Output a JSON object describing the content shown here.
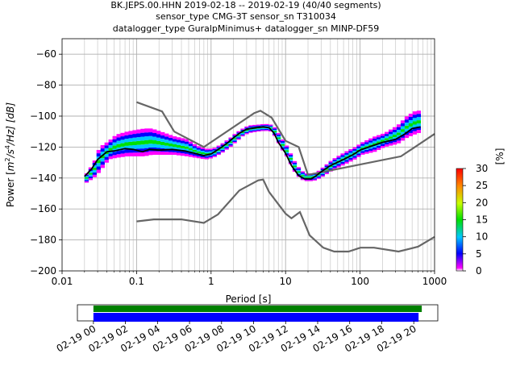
{
  "chart_data": [
    {
      "type": "heatmap",
      "subtype": "ppsd",
      "title_lines": [
        "BK.JEPS.00.HHN   2019-02-18 -- 2019-02-19  (40/40 segments)",
        "sensor_type CMG-3T sensor_sn T310034",
        "datalogger_type GuralpMinimus+ datalogger_sn MINP-DF59"
      ],
      "xlabel": "Period [s]",
      "ylabel": "Power [m²/s⁴/Hz] [dB]",
      "ylabel_parts": {
        "main": "Power [",
        "m": "m",
        "exp2": "2",
        "s": "/s",
        "exp4": "4",
        "hz": "/Hz] [dB]"
      },
      "xscale": "log",
      "xlim": [
        0.01,
        1000
      ],
      "ylim": [
        -200,
        -50
      ],
      "x_ticks": [
        0.01,
        0.1,
        1,
        10,
        100,
        1000
      ],
      "x_tick_labels": [
        "0.01",
        "0.1",
        "1",
        "10",
        "100",
        "1000"
      ],
      "y_ticks": [
        -60,
        -80,
        -100,
        -120,
        -140,
        -160,
        -180,
        -200
      ],
      "y_tick_labels": [
        "−60",
        "−80",
        "−100",
        "−120",
        "−140",
        "−160",
        "−180",
        "−200"
      ],
      "grid": true,
      "colorbar": {
        "label": "[%]",
        "range": [
          0,
          30
        ],
        "ticks": [
          0,
          5,
          10,
          15,
          20,
          25,
          30
        ],
        "tick_labels": [
          "0",
          "5",
          "10",
          "15",
          "20",
          "25",
          "30"
        ],
        "colormap": "pqlx"
      },
      "noise_models": [
        {
          "name": "NHNM",
          "color": "#666666",
          "points": [
            [
              0.1,
              -91
            ],
            [
              0.22,
              -97
            ],
            [
              0.32,
              -110
            ],
            [
              0.8,
              -120
            ],
            [
              3.8,
              -98
            ],
            [
              4.6,
              -96.5
            ],
            [
              6.5,
              -101
            ],
            [
              10,
              -116
            ],
            [
              15,
              -120
            ],
            [
              20,
              -138
            ],
            [
              354,
              -126
            ],
            [
              1000,
              -111.5
            ]
          ]
        },
        {
          "name": "NLNM",
          "color": "#666666",
          "points": [
            [
              0.1,
              -168
            ],
            [
              0.17,
              -166.7
            ],
            [
              0.4,
              -166.7
            ],
            [
              0.8,
              -169
            ],
            [
              1.24,
              -163.5
            ],
            [
              2.4,
              -148
            ],
            [
              4.3,
              -141.5
            ],
            [
              5,
              -141
            ],
            [
              6,
              -149
            ],
            [
              10,
              -163
            ],
            [
              12,
              -166
            ],
            [
              15.6,
              -162
            ],
            [
              21,
              -177
            ],
            [
              32,
              -185
            ],
            [
              45,
              -187.5
            ],
            [
              70,
              -187.5
            ],
            [
              101,
              -185
            ],
            [
              154,
              -185
            ],
            [
              328,
              -187.5
            ],
            [
              600,
              -184.4
            ],
            [
              1000,
              -178
            ]
          ]
        }
      ],
      "mean_curve": {
        "color": "#000000",
        "points": [
          [
            0.02,
            -139
          ],
          [
            0.025,
            -134
          ],
          [
            0.03,
            -128
          ],
          [
            0.04,
            -123
          ],
          [
            0.05,
            -122.5
          ],
          [
            0.07,
            -121
          ],
          [
            0.09,
            -121.5
          ],
          [
            0.12,
            -123
          ],
          [
            0.15,
            -121.5
          ],
          [
            0.2,
            -122
          ],
          [
            0.3,
            -121.5
          ],
          [
            0.45,
            -122.5
          ],
          [
            0.6,
            -124
          ],
          [
            0.8,
            -125.5
          ],
          [
            1,
            -124.5
          ],
          [
            1.3,
            -121
          ],
          [
            1.7,
            -117
          ],
          [
            2,
            -114
          ],
          [
            2.5,
            -110.5
          ],
          [
            3,
            -108.5
          ],
          [
            4,
            -107.5
          ],
          [
            5,
            -107
          ],
          [
            6,
            -107.5
          ],
          [
            7,
            -111
          ],
          [
            8,
            -117
          ],
          [
            10,
            -124
          ],
          [
            12,
            -132
          ],
          [
            15,
            -138.5
          ],
          [
            18,
            -140.5
          ],
          [
            22,
            -140.5
          ],
          [
            25,
            -139
          ],
          [
            30,
            -136
          ],
          [
            40,
            -132
          ],
          [
            60,
            -128
          ],
          [
            80,
            -125
          ],
          [
            100,
            -122
          ],
          [
            150,
            -119
          ],
          [
            200,
            -117
          ],
          [
            300,
            -115
          ],
          [
            400,
            -111.5
          ],
          [
            500,
            -108
          ],
          [
            650,
            -107
          ]
        ]
      },
      "ppsd_spread": [
        {
          "x": 0.02,
          "lo": -143,
          "hi": -137
        },
        {
          "x": 0.025,
          "lo": -140,
          "hi": -130
        },
        {
          "x": 0.03,
          "lo": -136,
          "hi": -120
        },
        {
          "x": 0.04,
          "lo": -128,
          "hi": -116
        },
        {
          "x": 0.05,
          "lo": -127,
          "hi": -112
        },
        {
          "x": 0.07,
          "lo": -126,
          "hi": -110
        },
        {
          "x": 0.09,
          "lo": -126,
          "hi": -109
        },
        {
          "x": 0.12,
          "lo": -126,
          "hi": -108
        },
        {
          "x": 0.15,
          "lo": -125,
          "hi": -108
        },
        {
          "x": 0.2,
          "lo": -125,
          "hi": -110
        },
        {
          "x": 0.3,
          "lo": -125,
          "hi": -113
        },
        {
          "x": 0.45,
          "lo": -126,
          "hi": -115
        },
        {
          "x": 0.6,
          "lo": -127,
          "hi": -119
        },
        {
          "x": 0.8,
          "lo": -128,
          "hi": -121
        },
        {
          "x": 1,
          "lo": -127,
          "hi": -121
        },
        {
          "x": 1.3,
          "lo": -124,
          "hi": -118
        },
        {
          "x": 1.7,
          "lo": -120,
          "hi": -114
        },
        {
          "x": 2,
          "lo": -117,
          "hi": -111
        },
        {
          "x": 2.5,
          "lo": -113,
          "hi": -108
        },
        {
          "x": 3,
          "lo": -111,
          "hi": -106
        },
        {
          "x": 4,
          "lo": -110,
          "hi": -105.5
        },
        {
          "x": 5,
          "lo": -109.5,
          "hi": -105
        },
        {
          "x": 6,
          "lo": -110,
          "hi": -105.5
        },
        {
          "x": 7,
          "lo": -114,
          "hi": -108
        },
        {
          "x": 8,
          "lo": -120,
          "hi": -113
        },
        {
          "x": 10,
          "lo": -127,
          "hi": -120
        },
        {
          "x": 12,
          "lo": -135,
          "hi": -128
        },
        {
          "x": 15,
          "lo": -141,
          "hi": -135
        },
        {
          "x": 18,
          "lo": -142,
          "hi": -137
        },
        {
          "x": 22,
          "lo": -142,
          "hi": -137
        },
        {
          "x": 25,
          "lo": -141,
          "hi": -136
        },
        {
          "x": 30,
          "lo": -139,
          "hi": -133
        },
        {
          "x": 40,
          "lo": -135,
          "hi": -128
        },
        {
          "x": 60,
          "lo": -131,
          "hi": -123
        },
        {
          "x": 80,
          "lo": -128,
          "hi": -120
        },
        {
          "x": 100,
          "lo": -125,
          "hi": -117
        },
        {
          "x": 150,
          "lo": -123,
          "hi": -113
        },
        {
          "x": 200,
          "lo": -120,
          "hi": -111
        },
        {
          "x": 300,
          "lo": -118,
          "hi": -106
        },
        {
          "x": 400,
          "lo": -114,
          "hi": -100
        },
        {
          "x": 500,
          "lo": -112,
          "hi": -97
        },
        {
          "x": 650,
          "lo": -110,
          "hi": -96
        }
      ]
    },
    {
      "type": "timeline",
      "tick_labels": [
        "02-19 00",
        "02-19 02",
        "02-19 04",
        "02-19 06",
        "02-19 08",
        "02-19 10",
        "02-19 12",
        "02-19 14",
        "02-19 16",
        "02-19 18",
        "02-19 20"
      ],
      "tick_hours": [
        0,
        2,
        4,
        6,
        8,
        10,
        12,
        14,
        16,
        18,
        20
      ],
      "xlim_hours": [
        -1,
        21.5
      ],
      "bars": [
        {
          "color": "#008000",
          "start_hours": 0,
          "end_hours": 20.5
        },
        {
          "color": "#0000ff",
          "start_hours": 0,
          "end_hours": 20.3
        }
      ]
    }
  ]
}
